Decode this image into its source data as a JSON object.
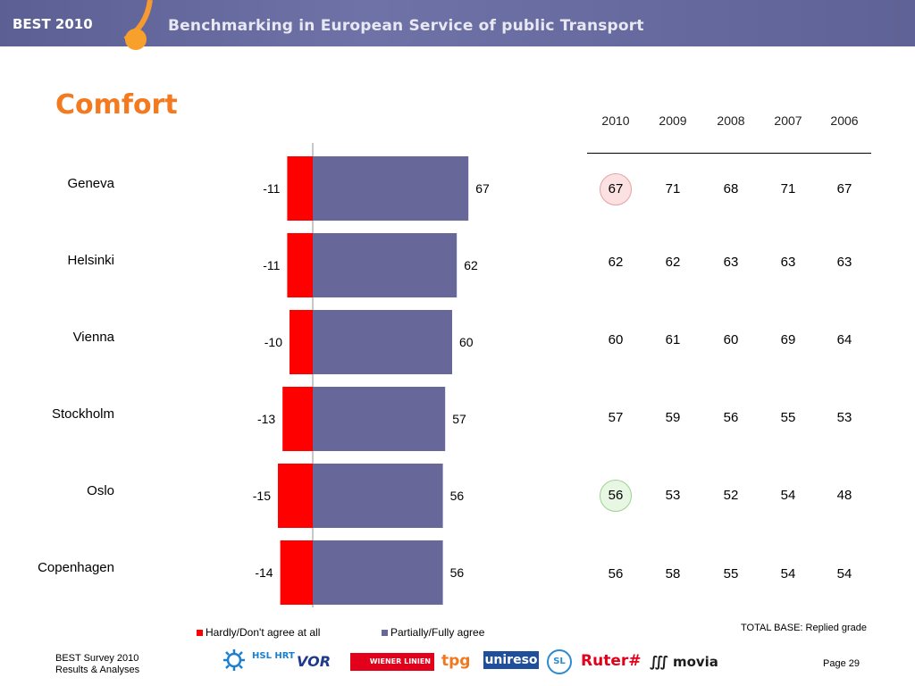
{
  "header": {
    "badge": "BEST 2010",
    "title": "Benchmarking in European Service of public Transport"
  },
  "page_title": "Comfort",
  "colors": {
    "negative": "#ff0000",
    "positive": "#67679a",
    "accent": "#f47a20",
    "header_bar": "#62659a"
  },
  "chart_data": {
    "type": "bar",
    "orientation": "horizontal-diverging",
    "categories": [
      "Geneva",
      "Helsinki",
      "Vienna",
      "Stockholm",
      "Oslo",
      "Copenhagen"
    ],
    "series": [
      {
        "name": "Hardly/Don't agree at all",
        "values": [
          -11,
          -11,
          -10,
          -13,
          -15,
          -14
        ]
      },
      {
        "name": "Partially/Fully agree",
        "values": [
          67,
          62,
          60,
          57,
          56,
          56
        ]
      }
    ]
  },
  "table": {
    "years": [
      "2010",
      "2009",
      "2008",
      "2007",
      "2006"
    ],
    "rows": [
      {
        "city": "Geneva",
        "values": [
          "67",
          "71",
          "68",
          "71",
          "67"
        ],
        "highlight": "red"
      },
      {
        "city": "Helsinki",
        "values": [
          "62",
          "62",
          "63",
          "63",
          "63"
        ],
        "highlight": ""
      },
      {
        "city": "Vienna",
        "values": [
          "60",
          "61",
          "60",
          "69",
          "64"
        ],
        "highlight": ""
      },
      {
        "city": "Stockholm",
        "values": [
          "57",
          "59",
          "56",
          "55",
          "53"
        ],
        "highlight": ""
      },
      {
        "city": "Oslo",
        "values": [
          "56",
          "53",
          "52",
          "54",
          "48"
        ],
        "highlight": "green"
      },
      {
        "city": "Copenhagen",
        "values": [
          "56",
          "58",
          "55",
          "54",
          "54"
        ],
        "highlight": ""
      }
    ]
  },
  "legend": {
    "negative": "Hardly/Don't agree at all",
    "positive": "Partially/Fully agree"
  },
  "total_base": "TOTAL BASE: Replied grade",
  "footer": {
    "source_line1": "BEST Survey 2010",
    "source_line2": "Results & Analyses",
    "page": "Page 29",
    "logos": [
      "HSL HRT",
      "VOR",
      "WIENER LINIEN",
      "tpg",
      "unireso",
      "SL",
      "Ruter#",
      "movia"
    ]
  }
}
